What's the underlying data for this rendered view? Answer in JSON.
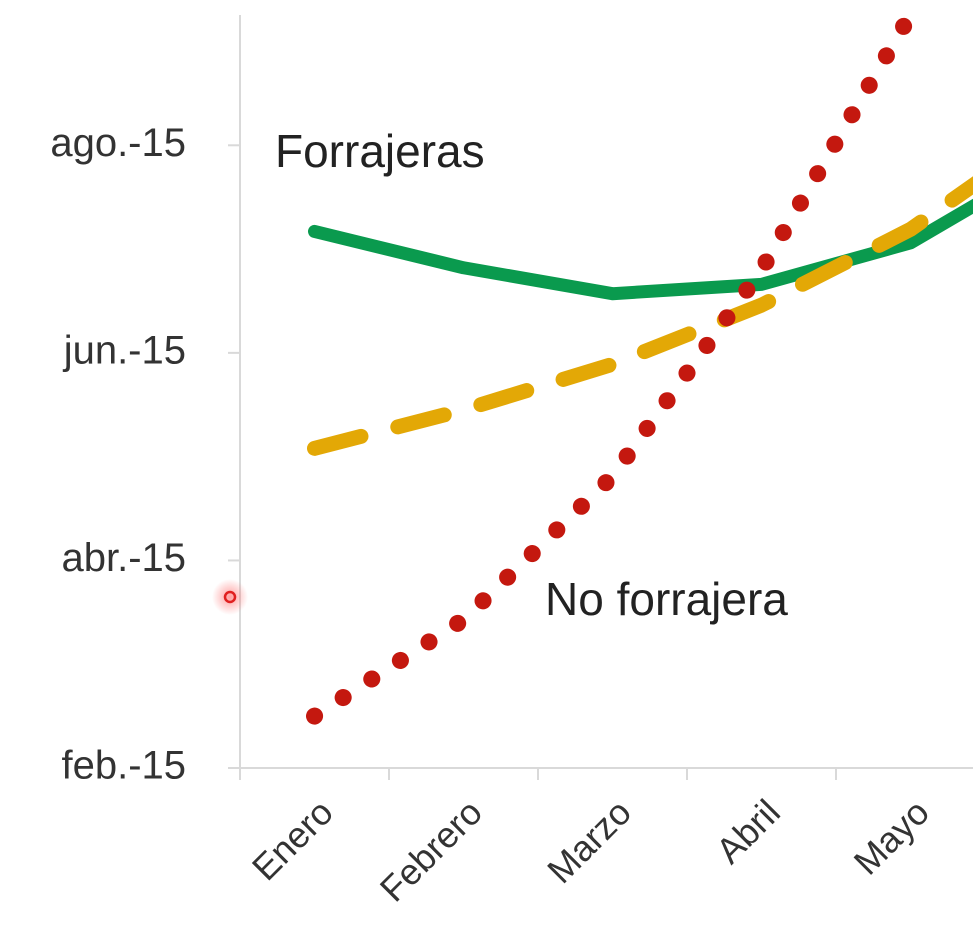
{
  "chart_data": {
    "type": "line",
    "categories": [
      "Enero",
      "Febrero",
      "Marzo",
      "Abril",
      "Mayo",
      null
    ],
    "series": [
      {
        "color": "#0a9a4e",
        "style": "solid",
        "values": [
          7.17,
          6.82,
          6.57,
          6.66,
          7.06,
          7.9
        ]
      },
      {
        "color": "#e3a806",
        "style": "dashed",
        "values": [
          5.08,
          5.45,
          5.89,
          6.46,
          7.19,
          8.2
        ]
      },
      {
        "color": "#c4180f",
        "style": "dotted",
        "values": [
          2.5,
          3.43,
          4.81,
          6.8,
          9.26,
          null
        ]
      }
    ],
    "ylim": [
      2,
      9.4
    ],
    "yticks": [
      {
        "value": 2,
        "label": "feb.-15"
      },
      {
        "value": 4,
        "label": "abr.-15"
      },
      {
        "value": 6,
        "label": "jun.-15"
      },
      {
        "value": 8,
        "label": "ago.-15"
      }
    ],
    "annotations": [
      "Forrajeras",
      "No forrajera"
    ]
  }
}
